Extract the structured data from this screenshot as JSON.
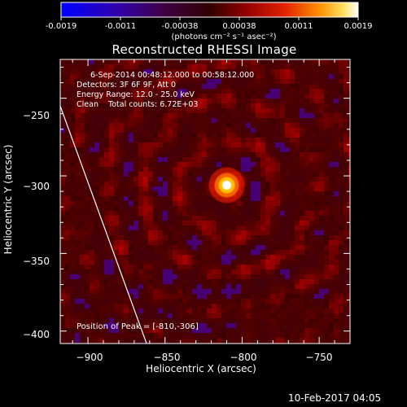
{
  "colorbar": {
    "ticks": [
      "-0.0019",
      "-0.0011",
      "-0.00038",
      "0.00038",
      "0.0011",
      "0.0019"
    ],
    "unit_label": "(photons cm⁻² s⁻¹ asec⁻²)",
    "min": -0.0019,
    "max": 0.0019
  },
  "title": "Reconstructed RHESSI Image",
  "info": {
    "line1": "6-Sep-2014 00:48:12.000 to 00:58:12.000",
    "line2": "Detectors: 3F 6F 9F, Att 0",
    "line3": "Energy Range: 12.0 - 25.0 keV",
    "line4": "Clean    Total counts: 6.72E+03"
  },
  "peak_label": "Position of Peak = [-810,-306]",
  "timestamp": "10-Feb-2017 04:05",
  "chart_data": {
    "type": "heatmap",
    "title": "Reconstructed RHESSI Image",
    "xlabel": "Heliocentric X (arcsec)",
    "ylabel": "Heliocentric Y (arcsec)",
    "xlim": [
      -918,
      -730
    ],
    "ylim": [
      -408,
      -225
    ],
    "x_ticks": [
      -900,
      -850,
      -800,
      -750
    ],
    "y_ticks": [
      -250,
      -300,
      -350,
      -400
    ],
    "x_tick_labels": [
      "−900",
      "−850",
      "−800",
      "−750"
    ],
    "y_tick_labels": [
      "−250",
      "−300",
      "−350",
      "−400"
    ],
    "peak": {
      "x": -810,
      "y": -306
    },
    "limb_line": {
      "x1": -918,
      "y1": -255,
      "x2": -862,
      "y2": -408
    }
  }
}
